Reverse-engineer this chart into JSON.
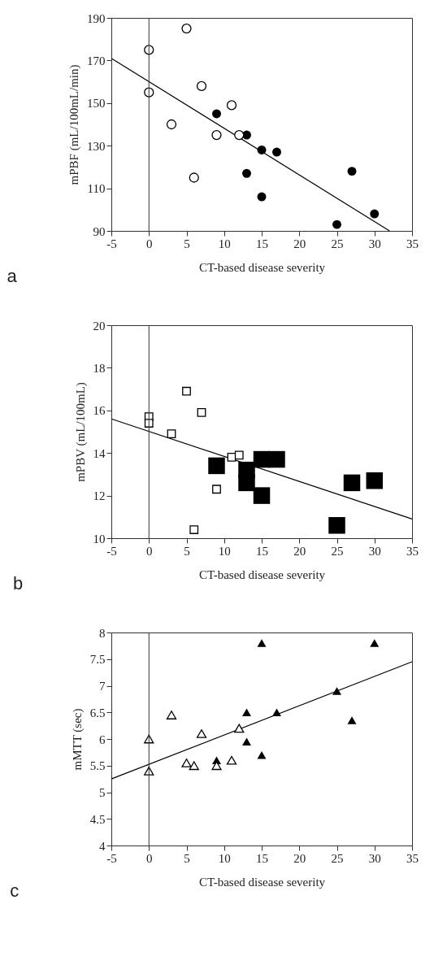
{
  "chart_data": [
    {
      "type": "scatter",
      "xlabel": "CT-based disease severity",
      "ylabel": "mPBF (mL/100mL/min)",
      "annotations": [
        "a"
      ],
      "xlim": [
        -5,
        35
      ],
      "xticks": [
        -5,
        0,
        5,
        10,
        15,
        20,
        25,
        30,
        35
      ],
      "ylim": [
        90,
        190
      ],
      "yticks": [
        90,
        110,
        130,
        150,
        170,
        190
      ],
      "grid": false,
      "legend": false,
      "ref_lines": [
        {
          "axis": "x",
          "value": 0
        }
      ],
      "series": [
        {
          "color": "#000000",
          "marker": "circle",
          "x": [
            0,
            0,
            5,
            3,
            7,
            6,
            9,
            11,
            12
          ],
          "values": [
            175,
            155,
            185,
            140,
            158,
            115,
            135,
            149,
            135
          ]
        },
        {
          "color": "#000000",
          "marker": "circle",
          "x": [
            9,
            13,
            13,
            15,
            15,
            17,
            25,
            27,
            30
          ],
          "values": [
            145,
            135,
            117,
            128,
            106,
            127,
            93,
            118,
            98
          ]
        },
        {
          "type": "line",
          "color": "#000000",
          "marker": "none",
          "x": [
            -5,
            32
          ],
          "values": [
            171,
            90
          ]
        }
      ]
    },
    {
      "type": "scatter",
      "xlabel": "CT-based disease severity",
      "ylabel": "mPBV (mL/100mL)",
      "annotations": [
        "b"
      ],
      "xlim": [
        -5,
        35
      ],
      "xticks": [
        -5,
        0,
        5,
        10,
        15,
        20,
        25,
        30,
        35
      ],
      "ylim": [
        10,
        20
      ],
      "yticks": [
        10,
        12,
        14,
        16,
        18,
        20
      ],
      "grid": false,
      "legend": false,
      "ref_lines": [
        {
          "axis": "x",
          "value": 0
        }
      ],
      "series": [
        {
          "color": "#000000",
          "marker": "square",
          "x": [
            0,
            0,
            3,
            5,
            7,
            9,
            11,
            12,
            6
          ],
          "values": [
            15.7,
            15.4,
            14.9,
            16.9,
            15.9,
            12.3,
            13.8,
            13.9,
            10.4
          ]
        },
        {
          "color": "#000000",
          "marker": "square",
          "x": [
            9,
            13,
            13,
            15,
            15,
            17,
            25,
            27,
            30
          ],
          "values": [
            13.4,
            13.2,
            12.6,
            12.0,
            13.7,
            13.7,
            10.6,
            12.6,
            12.7
          ]
        },
        {
          "type": "line",
          "color": "#000000",
          "marker": "none",
          "x": [
            -5,
            35
          ],
          "values": [
            15.6,
            10.9
          ]
        }
      ]
    },
    {
      "type": "scatter",
      "xlabel": "CT-based disease severity",
      "ylabel": "mMTT (sec)",
      "annotations": [
        "c"
      ],
      "xlim": [
        -5,
        35
      ],
      "xticks": [
        -5,
        0,
        5,
        10,
        15,
        20,
        25,
        30,
        35
      ],
      "ylim": [
        4,
        8
      ],
      "yticks": [
        4,
        4.5,
        5,
        5.5,
        6,
        6.5,
        7,
        7.5,
        8
      ],
      "grid": false,
      "legend": false,
      "ref_lines": [
        {
          "axis": "x",
          "value": 0
        }
      ],
      "series": [
        {
          "color": "#000000",
          "marker": "triangle",
          "x": [
            0,
            0,
            3,
            5,
            6,
            7,
            9,
            11,
            12
          ],
          "values": [
            6.0,
            5.4,
            6.45,
            5.55,
            5.5,
            6.1,
            5.5,
            5.6,
            6.2
          ]
        },
        {
          "color": "#000000",
          "marker": "triangle",
          "x": [
            9,
            13,
            13,
            15,
            15,
            17,
            25,
            27,
            30
          ],
          "values": [
            5.6,
            6.5,
            5.95,
            7.8,
            5.7,
            6.5,
            6.9,
            6.35,
            7.8
          ]
        },
        {
          "type": "line",
          "color": "#000000",
          "marker": "none",
          "x": [
            -5,
            35
          ],
          "values": [
            5.25,
            7.45
          ]
        }
      ]
    }
  ]
}
